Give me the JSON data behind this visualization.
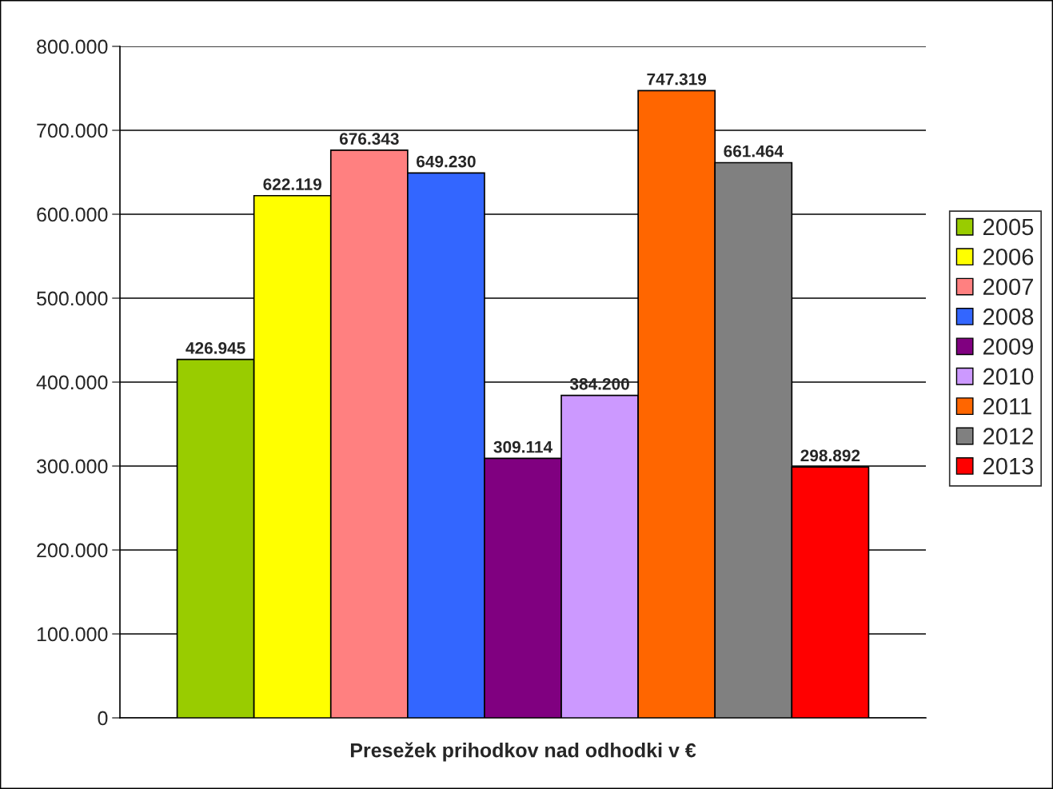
{
  "chart_data": {
    "type": "bar",
    "categories": [
      "Presežek prihodkov nad odhodki v €"
    ],
    "series": [
      {
        "name": "2005",
        "color": "#99cc00",
        "values": [
          426945
        ],
        "value_labels": [
          "426.945"
        ]
      },
      {
        "name": "2006",
        "color": "#ffff00",
        "values": [
          622119
        ],
        "value_labels": [
          "622.119"
        ]
      },
      {
        "name": "2007",
        "color": "#ff8080",
        "values": [
          676343
        ],
        "value_labels": [
          "676.343"
        ]
      },
      {
        "name": "2008",
        "color": "#3366ff",
        "values": [
          649230
        ],
        "value_labels": [
          "649.230"
        ]
      },
      {
        "name": "2009",
        "color": "#800080",
        "values": [
          309114
        ],
        "value_labels": [
          "309.114"
        ]
      },
      {
        "name": "2010",
        "color": "#cc99ff",
        "values": [
          384200
        ],
        "value_labels": [
          "384.200"
        ]
      },
      {
        "name": "2011",
        "color": "#ff6600",
        "values": [
          747319
        ],
        "value_labels": [
          "747.319"
        ]
      },
      {
        "name": "2012",
        "color": "#808080",
        "values": [
          661464
        ],
        "value_labels": [
          "661.464"
        ]
      },
      {
        "name": "2013",
        "color": "#ff0000",
        "values": [
          298892
        ],
        "value_labels": [
          "298.892"
        ]
      }
    ],
    "ylim": [
      0,
      800000
    ],
    "yticks": [
      {
        "value": 0,
        "label": "0"
      },
      {
        "value": 100000,
        "label": "100.000"
      },
      {
        "value": 200000,
        "label": "200.000"
      },
      {
        "value": 300000,
        "label": "300.000"
      },
      {
        "value": 400000,
        "label": "400.000"
      },
      {
        "value": 500000,
        "label": "500.000"
      },
      {
        "value": 600000,
        "label": "600.000"
      },
      {
        "value": 700000,
        "label": "700.000"
      },
      {
        "value": 800000,
        "label": "800.000"
      }
    ],
    "grid": "y",
    "legend": "right"
  }
}
